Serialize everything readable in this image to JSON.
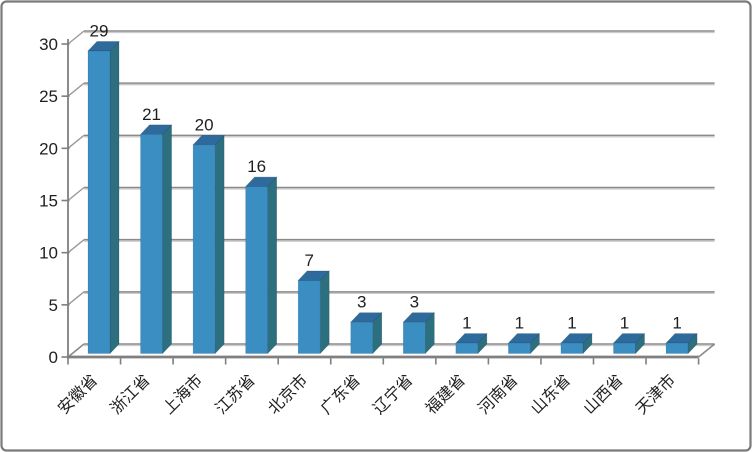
{
  "chart_data": {
    "type": "bar",
    "style": "3d-column",
    "title": "",
    "xlabel": "",
    "ylabel": "",
    "categories": [
      "安徽省",
      "浙江省",
      "上海市",
      "江苏省",
      "北京市",
      "广东省",
      "辽宁省",
      "福建省",
      "河南省",
      "山东省",
      "山西省",
      "天津市"
    ],
    "values": [
      29,
      21,
      20,
      16,
      7,
      3,
      3,
      1,
      1,
      1,
      1,
      1
    ],
    "data_labels": [
      "29",
      "21",
      "20",
      "16",
      "7",
      "3",
      "3",
      "1",
      "1",
      "1",
      "1",
      "1"
    ],
    "y_ticks": [
      0,
      5,
      10,
      15,
      20,
      25,
      30
    ],
    "y_tick_labels": [
      "0",
      "5",
      "10",
      "15",
      "20",
      "25",
      "30"
    ],
    "ylim": [
      0,
      30
    ],
    "grid": true,
    "legend": "none",
    "colors": {
      "bar_front": "#3B8EC1",
      "bar_top": "#2E6B9C",
      "bar_side": "#2C7080",
      "gridline_dark": "#8A8A8A",
      "gridline_light": "#CBCBCB",
      "axis": "#7F7F7F",
      "connector": "#9A9A9A",
      "text": "#1F1F1F",
      "border": "#7A7A7A",
      "background": "#FFFFFF"
    }
  }
}
